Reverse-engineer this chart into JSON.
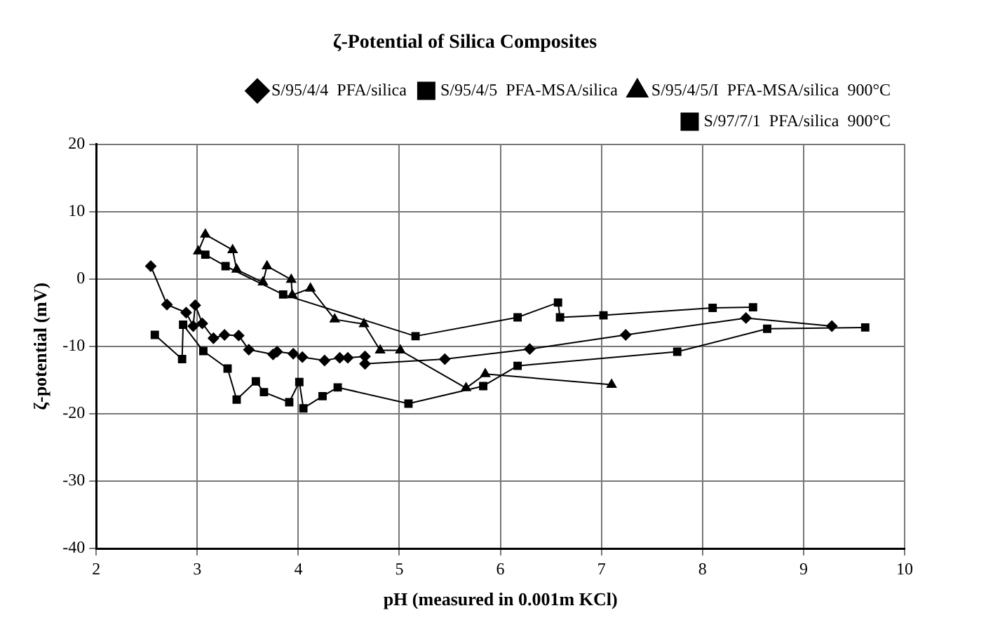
{
  "chart_data": {
    "type": "line",
    "title": "ζ-Potential of Silica Composites",
    "xlabel": "pH (measured in 0.001m KCl)",
    "ylabel": "ζ-potential (mV)",
    "xlim": [
      2,
      10
    ],
    "xticks": [
      2,
      3,
      4,
      5,
      6,
      7,
      8,
      9,
      10
    ],
    "ylim": [
      -40,
      20
    ],
    "yticks": [
      -40,
      -30,
      -20,
      -10,
      0,
      10,
      20
    ],
    "grid": true,
    "legend": "top right",
    "series": [
      {
        "name": "S/95/4/4  PFA/silica",
        "color": "#000000",
        "marker": "diamond",
        "x": [
          2.54,
          2.7,
          2.89,
          2.96,
          2.98,
          3.05,
          3.16,
          3.27,
          3.41,
          3.51,
          3.75,
          3.79,
          3.95,
          4.04,
          4.26,
          4.41,
          4.49,
          4.66,
          4.66,
          5.45,
          6.29,
          7.24,
          8.43,
          9.28
        ],
        "values": [
          1.9,
          -3.8,
          -5,
          -7,
          -3.9,
          -6.6,
          -8.8,
          -8.3,
          -8.4,
          -10.5,
          -11.2,
          -10.8,
          -11.1,
          -11.6,
          -12.1,
          -11.7,
          -11.7,
          -11.5,
          -12.6,
          -11.9,
          -10.4,
          -8.3,
          -5.8,
          -7
        ]
      },
      {
        "name": "S/95/4/5  PFA-MSA/silica",
        "color": "#000000",
        "marker": "square",
        "x": [
          2.58,
          2.85,
          2.86,
          3.06,
          3.3,
          3.39,
          3.58,
          3.66,
          3.91,
          4.01,
          4.05,
          4.24,
          4.39,
          5.09,
          5.83,
          6.17,
          7.75,
          8.64,
          9.61
        ],
        "values": [
          -8.3,
          -11.9,
          -6.8,
          -10.7,
          -13.3,
          -17.9,
          -15.2,
          -16.8,
          -18.3,
          -15.3,
          -19.2,
          -17.4,
          -16.1,
          -18.5,
          -15.9,
          -12.9,
          -10.8,
          -7.4,
          -7.2
        ]
      },
      {
        "name": "S/95/4/5/I  PFA-MSA/silica  900°C",
        "color": "#000000",
        "marker": "triangle",
        "x": [
          3.01,
          3.08,
          3.35,
          3.39,
          3.65,
          3.69,
          3.93,
          3.94,
          4.12,
          4.36,
          4.65,
          4.81,
          5.01,
          5.66,
          5.85,
          7.1
        ],
        "values": [
          4.1,
          6.6,
          4.3,
          1.4,
          -0.5,
          1.9,
          -0.1,
          -2.4,
          -1.4,
          -6,
          -6.7,
          -10.6,
          -10.6,
          -16.2,
          -14.1,
          -15.7
        ]
      },
      {
        "name": "S/97/7/1  PFA/silica  900°C",
        "color": "#000000",
        "marker": "square",
        "x": [
          3.08,
          3.28,
          3.85,
          5.16,
          6.17,
          6.57,
          6.59,
          7.02,
          8.1,
          8.5
        ],
        "values": [
          3.6,
          1.9,
          -2.3,
          -8.5,
          -5.7,
          -3.5,
          -5.7,
          -5.4,
          -4.3,
          -4.2
        ]
      }
    ]
  }
}
